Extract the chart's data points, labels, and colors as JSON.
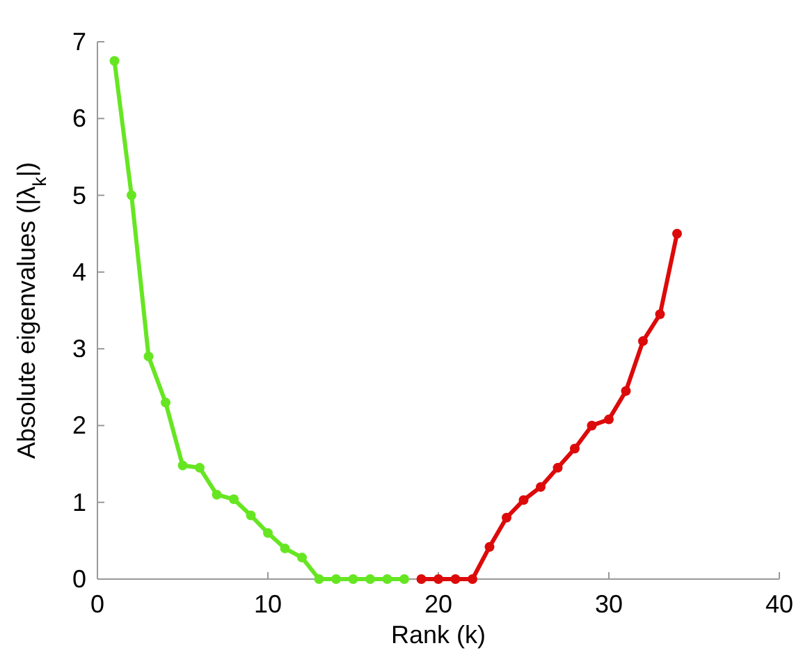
{
  "chart_data": {
    "type": "line",
    "xlabel": "Rank (k)",
    "ylabel": "Absolute eigenvalues (|λ$_{k}$|)",
    "xlim": [
      0,
      40
    ],
    "ylim": [
      0,
      7
    ],
    "xticks": [
      0,
      10,
      20,
      30,
      40
    ],
    "yticks": [
      0,
      1,
      2,
      3,
      4,
      5,
      6,
      7
    ],
    "marker": "circle",
    "line_style": "solid",
    "series": [
      {
        "color": "#66e622",
        "x": [
          1,
          2,
          3,
          4,
          5,
          6,
          7,
          8,
          9,
          10,
          11,
          12,
          13,
          14,
          15,
          16,
          17,
          18
        ],
        "values": [
          6.75,
          5.0,
          2.9,
          2.3,
          1.48,
          1.45,
          1.1,
          1.04,
          0.83,
          0.6,
          0.4,
          0.28,
          0,
          0,
          0,
          0,
          0,
          0
        ]
      },
      {
        "color": "#dd0a0a",
        "x": [
          19,
          20,
          21,
          22,
          23,
          24,
          25,
          26,
          27,
          28,
          29,
          30,
          31,
          32,
          33,
          34
        ],
        "values": [
          0,
          0,
          0,
          0,
          0.42,
          0.8,
          1.03,
          1.2,
          1.45,
          1.7,
          2.0,
          2.08,
          2.45,
          3.1,
          3.45,
          4.5
        ]
      }
    ]
  }
}
